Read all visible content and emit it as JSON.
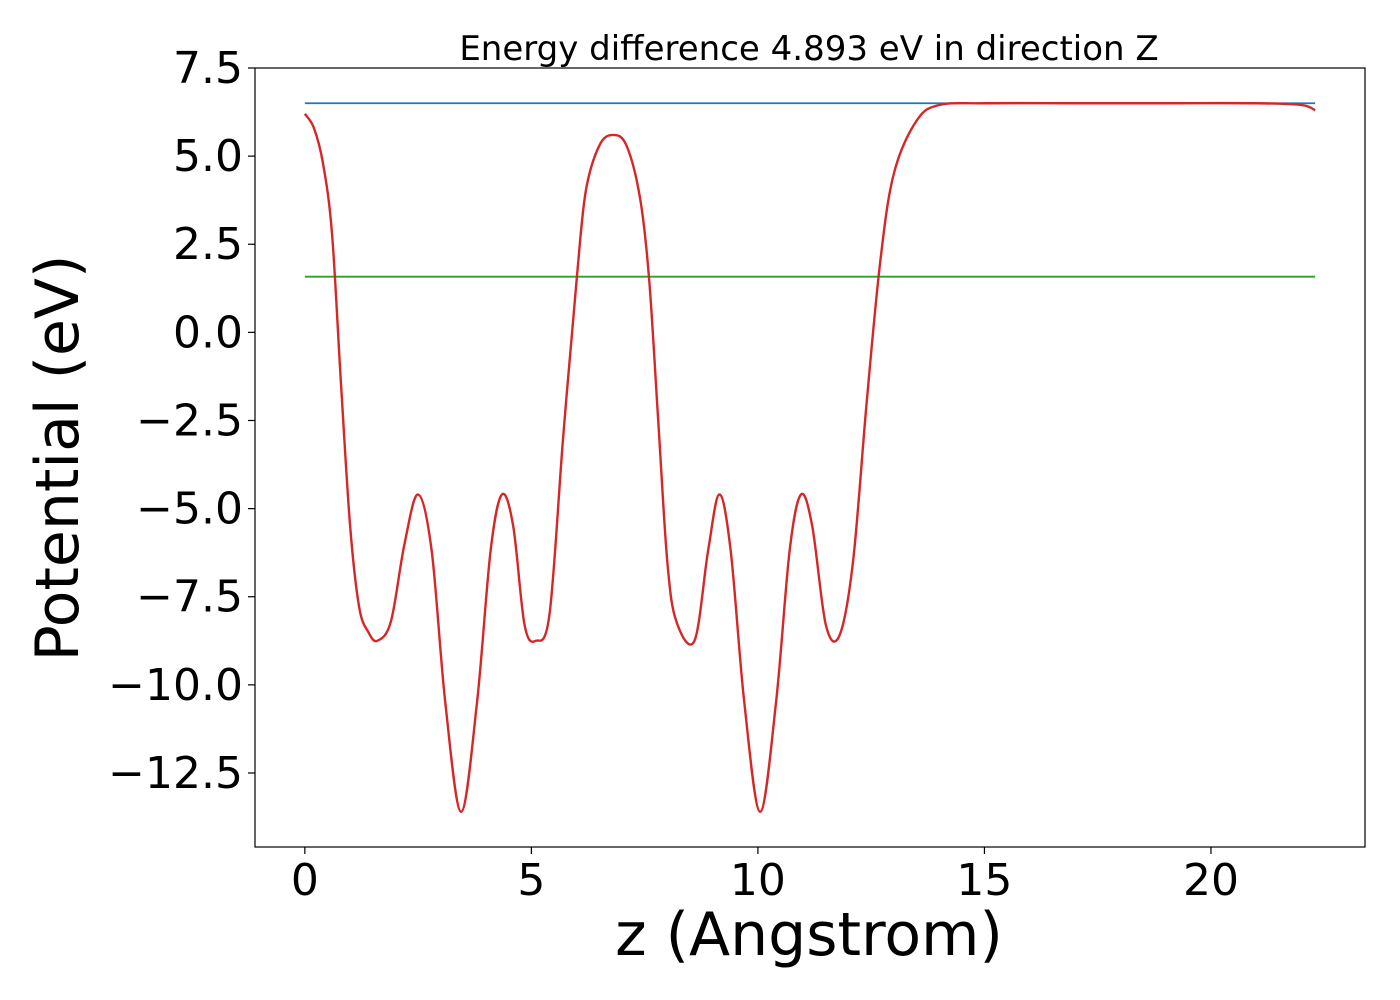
{
  "chart_data": {
    "type": "line",
    "title": "Energy difference 4.893 eV in direction Z",
    "xlabel": "z (Angstrom)",
    "ylabel": "Potential (eV)",
    "xlim": [
      -1.1,
      23.4
    ],
    "ylim": [
      -14.6,
      7.5
    ],
    "xticks": [
      0,
      5,
      10,
      15,
      20
    ],
    "xtick_labels": [
      "0",
      "5",
      "10",
      "15",
      "20"
    ],
    "yticks": [
      7.5,
      5.0,
      2.5,
      0.0,
      -2.5,
      -5.0,
      -7.5,
      -10.0,
      -12.5
    ],
    "ytick_labels": [
      "7.5",
      "5.0",
      "2.5",
      "0.0",
      "−2.5",
      "−5.0",
      "−7.5",
      "−10.0",
      "−12.5"
    ],
    "grid": false,
    "legend": "none",
    "series": [
      {
        "color": "#1f77b4",
        "x": [
          0,
          22.3
        ],
        "y": [
          6.5,
          6.5
        ]
      },
      {
        "color": "#2ca02c",
        "x": [
          0,
          22.3
        ],
        "y": [
          1.58,
          1.58
        ]
      },
      {
        "color": "#d62728",
        "x": [
          0,
          0.2,
          0.4,
          0.6,
          0.8,
          1.0,
          1.2,
          1.4,
          1.6,
          1.9,
          2.2,
          2.5,
          2.8,
          3.1,
          3.45,
          3.8,
          4.1,
          4.35,
          4.6,
          4.85,
          5.1,
          5.4,
          5.7,
          6.0,
          6.2,
          6.5,
          6.8,
          7.1,
          7.4,
          7.6,
          7.8,
          8.0,
          8.2,
          8.6,
          8.9,
          9.15,
          9.4,
          9.7,
          10.05,
          10.4,
          10.7,
          10.95,
          11.2,
          11.5,
          11.8,
          12.1,
          12.4,
          12.7,
          13.0,
          13.5,
          14.0,
          15.0,
          17.0,
          19.0,
          21.0,
          22.0,
          22.3
        ],
        "y": [
          6.2,
          5.8,
          4.8,
          2.8,
          -1.5,
          -5.5,
          -7.8,
          -8.5,
          -8.75,
          -8.2,
          -6.0,
          -4.6,
          -6.2,
          -10.5,
          -13.6,
          -10.5,
          -6.2,
          -4.6,
          -5.5,
          -8.3,
          -8.75,
          -8.0,
          -3.0,
          1.5,
          4.0,
          5.3,
          5.6,
          5.3,
          3.8,
          1.5,
          -2.5,
          -6.5,
          -8.2,
          -8.75,
          -6.2,
          -4.6,
          -6.2,
          -10.5,
          -13.6,
          -10.5,
          -6.2,
          -4.6,
          -5.5,
          -8.3,
          -8.6,
          -6.5,
          -2.0,
          2.0,
          4.5,
          6.0,
          6.45,
          6.5,
          6.5,
          6.5,
          6.5,
          6.45,
          6.3
        ]
      }
    ]
  }
}
